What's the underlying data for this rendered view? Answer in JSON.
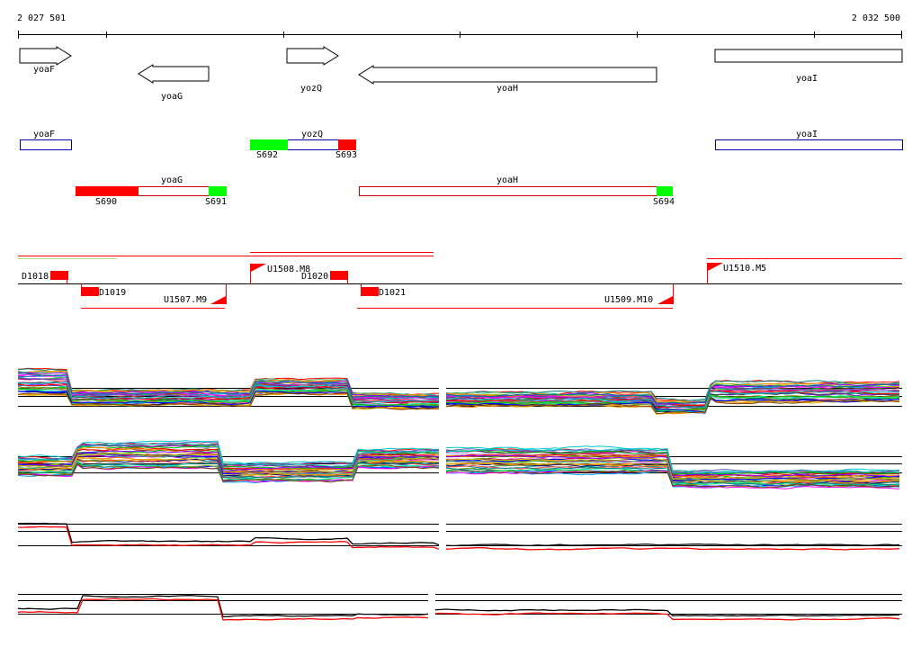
{
  "coords": {
    "start": "2 027 501",
    "end": "2 032 500"
  },
  "genes": [
    {
      "name": "yoaF",
      "strand": "+"
    },
    {
      "name": "yoaG",
      "strand": "-"
    },
    {
      "name": "yozQ",
      "strand": "+"
    },
    {
      "name": "yoaH",
      "strand": "-"
    },
    {
      "name": "yoaI",
      "strand": "+"
    }
  ],
  "transcripts_plus": [
    {
      "name": "yoaF",
      "segments": [],
      "labels": []
    },
    {
      "name": "yozQ",
      "segments": [
        {
          "label": "S692",
          "color": "#00ff00"
        },
        {
          "label": "S693",
          "color": "#ff0000"
        }
      ]
    },
    {
      "name": "yoaI",
      "segments": []
    }
  ],
  "transcripts_minus": [
    {
      "name": "yoaG",
      "segments": [
        {
          "label": "S690",
          "color": "#ff0000"
        },
        {
          "label": "S691",
          "color": "#00ff00"
        }
      ]
    },
    {
      "name": "yoaH",
      "segments": [
        {
          "label": "S694",
          "color": "#00ff00"
        }
      ]
    }
  ],
  "features_plus": [
    {
      "label": "D1018",
      "kind": "down"
    },
    {
      "label": "U1508.M8",
      "kind": "up"
    },
    {
      "label": "D1020",
      "kind": "down"
    },
    {
      "label": "U1510.M5",
      "kind": "up"
    }
  ],
  "features_minus": [
    {
      "label": "D1019",
      "kind": "down"
    },
    {
      "label": "U1507.M9",
      "kind": "up"
    },
    {
      "label": "D1021",
      "kind": "down"
    },
    {
      "label": "U1509.M10",
      "kind": "up"
    }
  ],
  "colors": {
    "gene_outline": "#000000",
    "transcript_plus": "#0000aa",
    "transcript_minus": "#cc0000",
    "start_segment": "#00ff00",
    "end_segment": "#ff0000",
    "feature_red": "#ff0000",
    "mean_red": "#ff0000",
    "mean_black": "#000000"
  }
}
